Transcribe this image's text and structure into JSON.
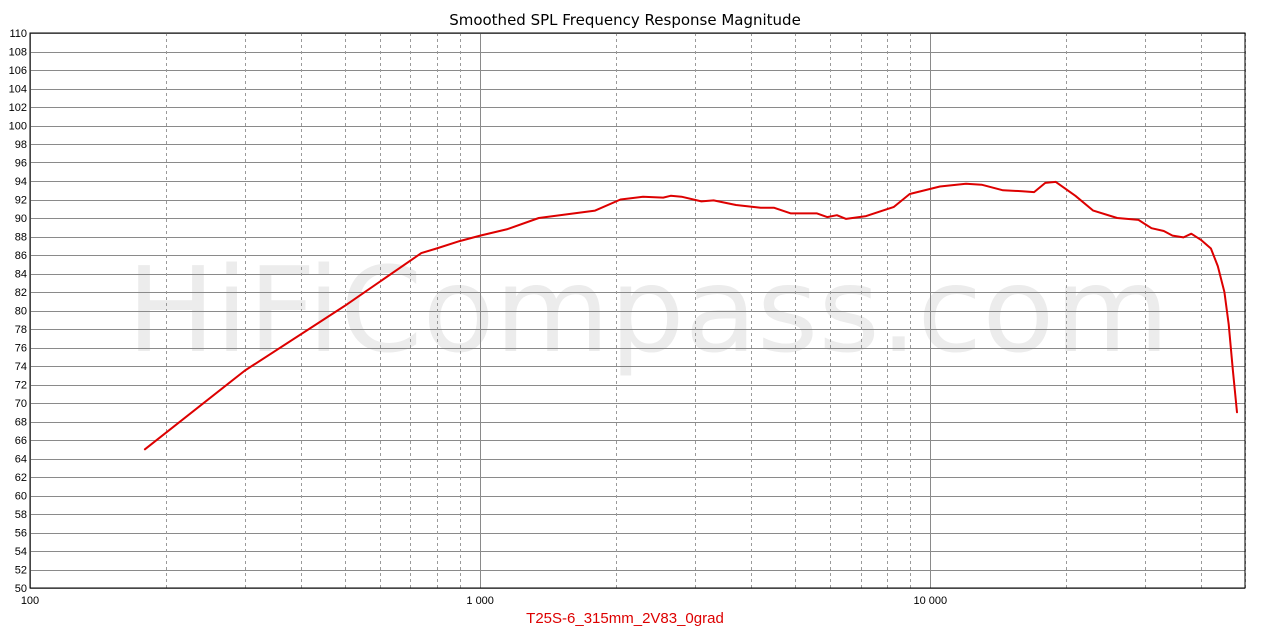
{
  "chart_data": {
    "type": "line",
    "title": "Smoothed SPL Frequency Response Magnitude",
    "watermark": "HiFiCompass.com",
    "xscale": "log",
    "xlim": [
      100,
      50000
    ],
    "ylim": [
      50,
      110
    ],
    "grid": true,
    "legend_position": "bottom-center",
    "x_ticks": [
      {
        "value": 100,
        "label": "100"
      },
      {
        "value": 1000,
        "label": "1 000"
      },
      {
        "value": 10000,
        "label": "10 000"
      }
    ],
    "y_ticks": [
      {
        "value": 50,
        "label": "50"
      },
      {
        "value": 52,
        "label": "52"
      },
      {
        "value": 54,
        "label": "54"
      },
      {
        "value": 56,
        "label": "56"
      },
      {
        "value": 58,
        "label": "58"
      },
      {
        "value": 60,
        "label": "60"
      },
      {
        "value": 62,
        "label": "62"
      },
      {
        "value": 64,
        "label": "64"
      },
      {
        "value": 66,
        "label": "66"
      },
      {
        "value": 68,
        "label": "68"
      },
      {
        "value": 70,
        "label": "70"
      },
      {
        "value": 72,
        "label": "72"
      },
      {
        "value": 74,
        "label": "74"
      },
      {
        "value": 76,
        "label": "76"
      },
      {
        "value": 78,
        "label": "78"
      },
      {
        "value": 80,
        "label": "80"
      },
      {
        "value": 82,
        "label": "82"
      },
      {
        "value": 84,
        "label": "84"
      },
      {
        "value": 86,
        "label": "86"
      },
      {
        "value": 88,
        "label": "88"
      },
      {
        "value": 90,
        "label": "90"
      },
      {
        "value": 92,
        "label": "92"
      },
      {
        "value": 94,
        "label": "94"
      },
      {
        "value": 96,
        "label": "96"
      },
      {
        "value": 98,
        "label": "98"
      },
      {
        "value": 100,
        "label": "100"
      },
      {
        "value": 102,
        "label": "102"
      },
      {
        "value": 104,
        "label": "104"
      },
      {
        "value": 106,
        "label": "106"
      },
      {
        "value": 108,
        "label": "108"
      },
      {
        "value": 110,
        "label": "110"
      }
    ],
    "series": [
      {
        "name": "T25S-6_315mm_2V83_0grad",
        "color": "#dd0000",
        "x": [
          180,
          300,
          500,
          740,
          800,
          900,
          1000,
          1150,
          1350,
          1800,
          2050,
          2300,
          2550,
          2650,
          2800,
          3100,
          3300,
          3700,
          4200,
          4500,
          4900,
          5600,
          5900,
          6200,
          6500,
          7200,
          8300,
          9000,
          10500,
          12000,
          13000,
          14500,
          16000,
          17000,
          18000,
          19000,
          21000,
          23000,
          26000,
          29000,
          31000,
          33000,
          34500,
          36500,
          38000,
          40000,
          42000,
          43500,
          45000,
          46000,
          47000,
          48000
        ],
        "y": [
          65.0,
          73.5,
          80.5,
          86.2,
          86.7,
          87.5,
          88.1,
          88.8,
          90.0,
          90.8,
          92.0,
          92.3,
          92.2,
          92.4,
          92.3,
          91.8,
          91.9,
          91.4,
          91.1,
          91.1,
          90.5,
          90.5,
          90.1,
          90.3,
          89.9,
          90.2,
          91.2,
          92.6,
          93.4,
          93.7,
          93.6,
          93.0,
          92.9,
          92.8,
          93.8,
          93.9,
          92.4,
          90.8,
          90.0,
          89.8,
          88.9,
          88.6,
          88.1,
          87.9,
          88.3,
          87.6,
          86.7,
          84.8,
          82.0,
          78.5,
          73.5,
          69.0
        ]
      }
    ]
  }
}
